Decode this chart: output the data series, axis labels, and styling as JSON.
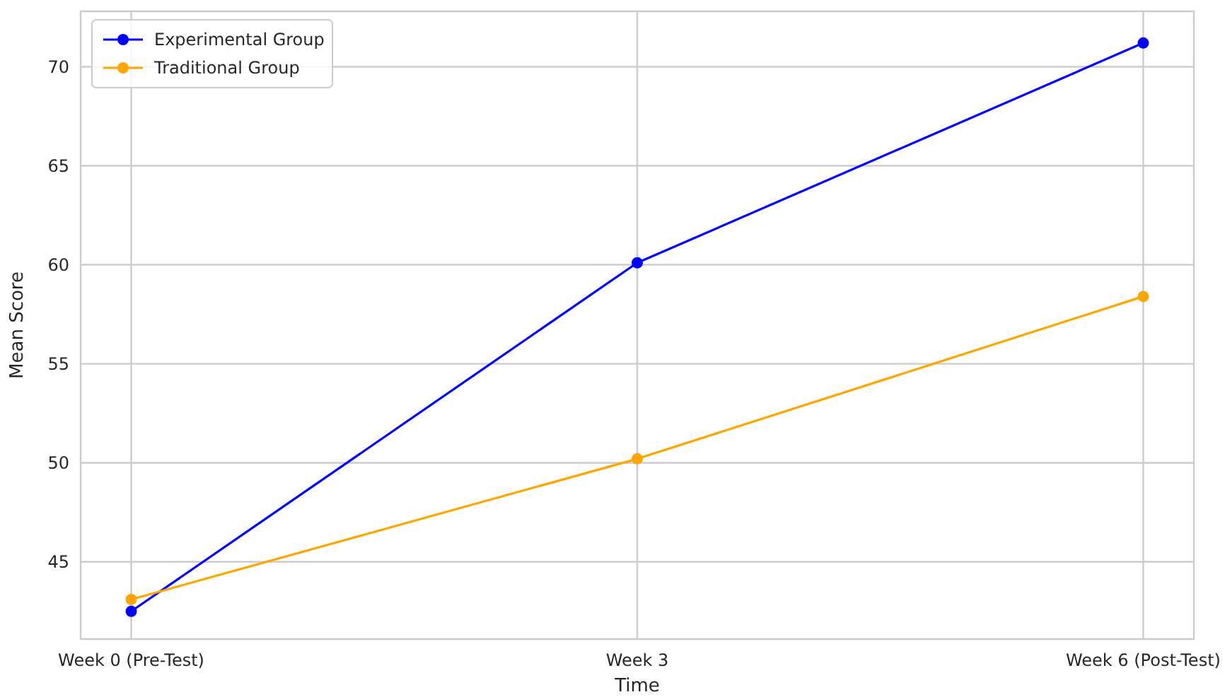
{
  "chart_data": {
    "type": "line",
    "xlabel": "Time",
    "ylabel": "Mean Score",
    "categories": [
      "Week 0 (Pre-Test)",
      "Week 3",
      "Week 6 (Post-Test)"
    ],
    "series": [
      {
        "name": "Experimental Group",
        "color": "#0000ff",
        "values": [
          42.5,
          60.1,
          71.2
        ]
      },
      {
        "name": "Traditional Group",
        "color": "#ffa500",
        "values": [
          43.1,
          50.2,
          58.4
        ]
      }
    ],
    "ylim": [
      41.1,
      72.8
    ],
    "yticks": [
      45,
      50,
      55,
      60,
      65,
      70
    ],
    "grid": true,
    "legend": "top left",
    "marker": "circle",
    "line_style": "solid"
  }
}
